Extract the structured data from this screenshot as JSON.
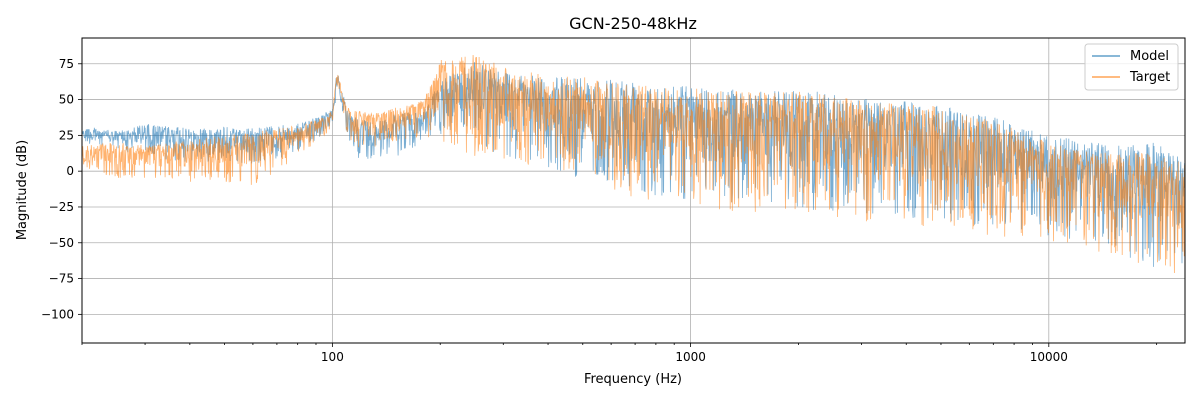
{
  "chart_data": {
    "type": "line",
    "title": "GCN-250-48kHz",
    "xlabel": "Frequency (Hz)",
    "ylabel": "Magnitude (dB)",
    "xscale": "log",
    "xlim": [
      20,
      24000
    ],
    "ylim": [
      -120,
      93
    ],
    "xticks": [
      100,
      1000,
      10000
    ],
    "xtick_labels": [
      "100",
      "1000",
      "10000"
    ],
    "yticks": [
      75,
      50,
      25,
      0,
      -25,
      -50,
      -75,
      -100
    ],
    "ytick_labels": [
      "75",
      "50",
      "25",
      "0",
      "−25",
      "−50",
      "−75",
      "−100"
    ],
    "grid": true,
    "legend_position": "top-right",
    "series": [
      {
        "name": "Model",
        "color": "#1f77b4",
        "opacity": 0.6,
        "envelope": {
          "x": [
            20,
            25,
            30,
            40,
            50,
            60,
            70,
            80,
            90,
            100,
            103,
            110,
            115,
            130,
            150,
            180,
            200,
            250,
            300,
            400,
            500,
            700,
            1000,
            1500,
            2000,
            3000,
            5000,
            7000,
            10000,
            15000,
            20000,
            24000
          ],
          "upper": [
            31,
            28,
            33,
            30,
            31,
            30,
            32,
            33,
            38,
            43,
            72,
            42,
            38,
            35,
            40,
            42,
            63,
            78,
            70,
            65,
            67,
            64,
            60,
            56,
            57,
            52,
            46,
            38,
            25,
            18,
            20,
            10
          ],
          "lower": [
            18,
            15,
            10,
            5,
            8,
            3,
            8,
            12,
            22,
            30,
            58,
            20,
            5,
            8,
            10,
            20,
            25,
            15,
            10,
            0,
            -5,
            -15,
            -20,
            -25,
            -28,
            -30,
            -35,
            -40,
            -45,
            -55,
            -70,
            -65
          ]
        }
      },
      {
        "name": "Target",
        "color": "#ff7f0e",
        "opacity": 0.6,
        "envelope": {
          "x": [
            20,
            25,
            30,
            40,
            50,
            60,
            70,
            80,
            90,
            100,
            103,
            110,
            115,
            130,
            150,
            180,
            200,
            250,
            300,
            400,
            500,
            700,
            1000,
            1500,
            2000,
            3000,
            5000,
            7000,
            10000,
            15000,
            20000,
            24000
          ],
          "upper": [
            18,
            20,
            18,
            22,
            25,
            27,
            30,
            32,
            36,
            42,
            70,
            45,
            43,
            40,
            45,
            50,
            78,
            82,
            73,
            67,
            66,
            60,
            58,
            55,
            56,
            50,
            45,
            35,
            22,
            12,
            13,
            5
          ],
          "lower": [
            0,
            -5,
            -5,
            -8,
            -8,
            -10,
            0,
            10,
            20,
            30,
            60,
            25,
            15,
            15,
            20,
            25,
            20,
            10,
            5,
            0,
            -5,
            -20,
            -25,
            -30,
            -30,
            -35,
            -40,
            -45,
            -50,
            -58,
            -70,
            -72
          ]
        }
      }
    ]
  }
}
